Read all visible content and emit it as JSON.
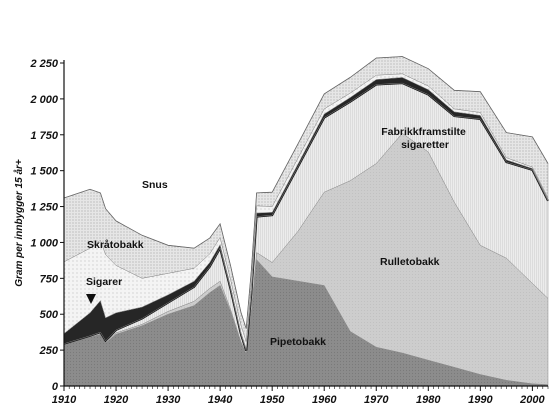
{
  "chart_data": {
    "type": "area",
    "ylabel": "Gram per innbygger 15 år+",
    "ylim": [
      0,
      2250
    ],
    "xlim": [
      1910,
      2003
    ],
    "y_ticks": [
      0,
      250,
      500,
      750,
      1000,
      1250,
      1500,
      1750,
      2000,
      2250
    ],
    "y_tick_labels": [
      "0",
      "250",
      "500",
      "750",
      "1 000",
      "1 250",
      "1 500",
      "1 750",
      "2 000",
      "2 250"
    ],
    "x_ticks": [
      1910,
      1920,
      1930,
      1940,
      1950,
      1960,
      1970,
      1980,
      1990,
      2000
    ],
    "x_tick_labels": [
      "1910",
      "1920",
      "1930",
      "1940",
      "1950",
      "1960",
      "1970",
      "1980",
      "1990",
      "2000"
    ],
    "grid": false,
    "legend": "labels placed inside the areas",
    "x": [
      1910,
      1915,
      1917,
      1918,
      1920,
      1925,
      1930,
      1935,
      1938,
      1940,
      1942,
      1944,
      1945,
      1946,
      1947,
      1950,
      1955,
      1960,
      1965,
      1970,
      1975,
      1980,
      1985,
      1990,
      1995,
      2000,
      2003
    ],
    "series": [
      {
        "name": "Pipetobakk",
        "fill": "#8e8e8e",
        "values": [
          290,
          340,
          360,
          300,
          360,
          420,
          500,
          560,
          650,
          700,
          520,
          300,
          220,
          500,
          880,
          760,
          730,
          700,
          380,
          270,
          230,
          180,
          130,
          80,
          40,
          15,
          10
        ]
      },
      {
        "name": "Rulletobakk",
        "fill": "#cfcfcf",
        "values": [
          5,
          10,
          10,
          10,
          10,
          10,
          20,
          30,
          30,
          30,
          15,
          10,
          5,
          30,
          50,
          100,
          350,
          650,
          1050,
          1280,
          1530,
          1450,
          1150,
          900,
          850,
          700,
          600
        ]
      },
      {
        "name": "Fabrikkframstilte sigaretter",
        "fill": "#ededed",
        "values": [
          0,
          0,
          5,
          5,
          20,
          40,
          60,
          100,
          150,
          230,
          140,
          50,
          20,
          120,
          250,
          330,
          450,
          520,
          550,
          550,
          350,
          400,
          600,
          880,
          670,
          790,
          680
        ]
      },
      {
        "name": "Sigarer",
        "fill": "#2a2a2a",
        "values": [
          70,
          160,
          220,
          160,
          120,
          80,
          55,
          40,
          30,
          25,
          20,
          15,
          15,
          20,
          25,
          20,
          20,
          25,
          30,
          35,
          40,
          35,
          30,
          25,
          15,
          10,
          10
        ]
      },
      {
        "name": "Skråtobakk",
        "fill": "#f6f6f6",
        "values": [
          500,
          450,
          420,
          440,
          330,
          200,
          150,
          90,
          60,
          50,
          50,
          50,
          50,
          50,
          50,
          40,
          40,
          35,
          30,
          30,
          25,
          25,
          20,
          20,
          15,
          10,
          10
        ]
      },
      {
        "name": "Snus",
        "fill": "#dcdcdc",
        "values": [
          445,
          410,
          330,
          320,
          310,
          300,
          195,
          140,
          110,
          95,
          95,
          90,
          90,
          90,
          90,
          100,
          100,
          105,
          110,
          120,
          120,
          120,
          130,
          145,
          175,
          210,
          240
        ]
      }
    ],
    "labels": [
      "Snus",
      "Skråtobakk",
      "Sigarer",
      "Fabrikkframstilte sigaretter",
      "Rulletobakk",
      "Pipetobakk"
    ]
  }
}
